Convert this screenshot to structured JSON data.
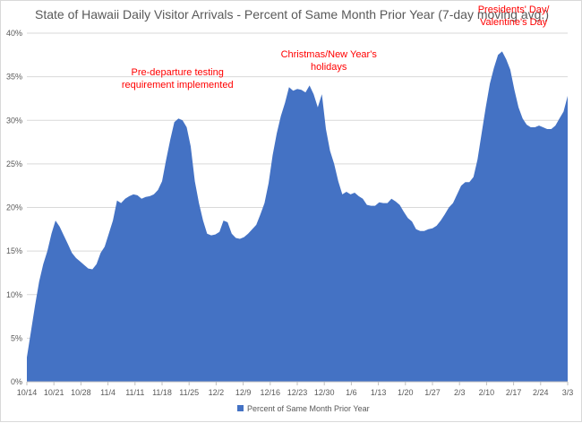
{
  "chart_data": {
    "type": "area",
    "title": "State of Hawaii Daily Visitor Arrivals - Percent of Same Month Prior Year (7-day moving avg.)",
    "xlabel": "",
    "ylabel": "",
    "ylim": [
      0,
      40
    ],
    "y_ticks": [
      "0%",
      "5%",
      "10%",
      "15%",
      "20%",
      "25%",
      "30%",
      "35%",
      "40%"
    ],
    "x_ticks": [
      "10/14",
      "10/21",
      "10/28",
      "11/4",
      "11/11",
      "11/18",
      "11/25",
      "12/2",
      "12/9",
      "12/16",
      "12/23",
      "12/30",
      "1/6",
      "1/13",
      "1/20",
      "1/27",
      "2/3",
      "2/10",
      "2/17",
      "2/24",
      "3/3"
    ],
    "grid": true,
    "legend_position": "bottom",
    "colors": {
      "fill": "#4472c4",
      "grid": "#d9d9d9",
      "text": "#595959",
      "annotation": "#ff0000"
    },
    "series": [
      {
        "name": "Percent of Same Month Prior Year",
        "x_day_labels_first": "10/14",
        "values": [
          2.8,
          5.8,
          8.8,
          11.5,
          13.5,
          15.0,
          17.0,
          18.5,
          17.8,
          16.8,
          15.8,
          14.8,
          14.2,
          13.8,
          13.4,
          13.0,
          12.9,
          13.5,
          14.8,
          15.5,
          17.0,
          18.5,
          20.8,
          20.5,
          21.0,
          21.3,
          21.5,
          21.4,
          21.0,
          21.2,
          21.3,
          21.5,
          22.0,
          23.0,
          25.5,
          27.8,
          29.8,
          30.2,
          30.0,
          29.2,
          27.0,
          23.0,
          20.5,
          18.5,
          17.0,
          16.8,
          16.9,
          17.2,
          18.5,
          18.3,
          17.0,
          16.5,
          16.4,
          16.6,
          17.0,
          17.5,
          18.0,
          19.2,
          20.5,
          22.8,
          26.0,
          28.5,
          30.5,
          32.0,
          33.8,
          33.4,
          33.6,
          33.5,
          33.2,
          34.0,
          33.0,
          31.5,
          33.0,
          29.0,
          26.5,
          25.0,
          23.0,
          21.5,
          21.8,
          21.5,
          21.7,
          21.3,
          21.0,
          20.3,
          20.2,
          20.2,
          20.6,
          20.5,
          20.5,
          21.0,
          20.7,
          20.3,
          19.5,
          18.8,
          18.4,
          17.5,
          17.3,
          17.3,
          17.5,
          17.6,
          17.9,
          18.5,
          19.2,
          20.0,
          20.5,
          21.5,
          22.5,
          22.9,
          22.9,
          23.5,
          25.5,
          28.5,
          31.5,
          34.2,
          36.0,
          37.5,
          37.9,
          37.0,
          35.8,
          33.5,
          31.5,
          30.2,
          29.5,
          29.2,
          29.2,
          29.4,
          29.2,
          29.0,
          29.0,
          29.4,
          30.2,
          31.0,
          32.8
        ]
      }
    ],
    "annotations": [
      {
        "lines": [
          "Pre-departure testing",
          "requirement implemented"
        ],
        "near_x": "11/25"
      },
      {
        "lines": [
          "Christmas/New Year's",
          "holidays"
        ],
        "near_x": "12/30"
      },
      {
        "lines": [
          "Presidents' Day/",
          "Valentine's Day"
        ],
        "near_x": "2/17"
      }
    ]
  }
}
